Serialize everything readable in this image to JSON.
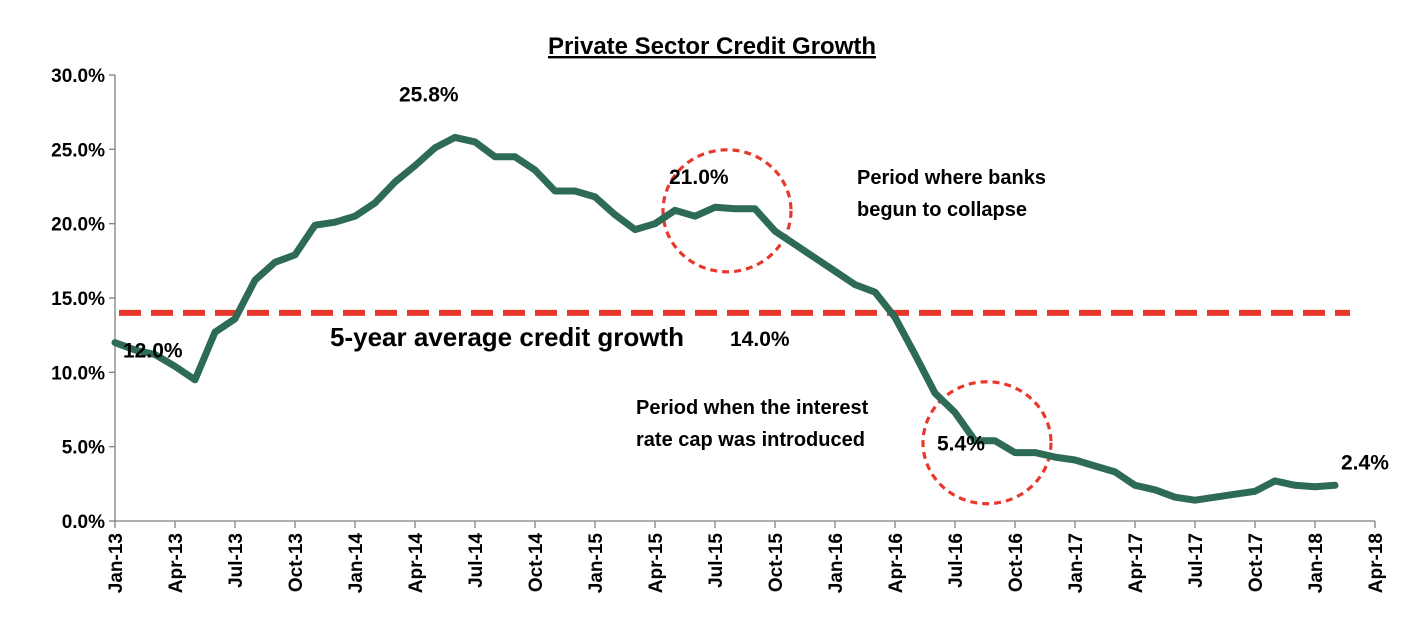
{
  "chart_data": {
    "type": "line",
    "title": "Private Sector Credit Growth",
    "xlabel": "",
    "ylabel": "",
    "ylim": [
      0,
      30
    ],
    "y_ticks": [
      "0.0%",
      "5.0%",
      "10.0%",
      "15.0%",
      "20.0%",
      "25.0%",
      "30.0%"
    ],
    "x_ticks": [
      "Jan-13",
      "Apr-13",
      "Jul-13",
      "Oct-13",
      "Jan-14",
      "Apr-14",
      "Jul-14",
      "Oct-14",
      "Jan-15",
      "Apr-15",
      "Jul-15",
      "Oct-15",
      "Jan-16",
      "Apr-16",
      "Jul-16",
      "Oct-16",
      "Jan-17",
      "Apr-17",
      "Jul-17",
      "Oct-17",
      "Jan-18",
      "Apr-18"
    ],
    "x_range": [
      "2013-01",
      "2018-04"
    ],
    "series": [
      {
        "color": "#2e6b55",
        "x": [
          "2013-01",
          "2013-02",
          "2013-03",
          "2013-04",
          "2013-05",
          "2013-06",
          "2013-07",
          "2013-08",
          "2013-09",
          "2013-10",
          "2013-11",
          "2013-12",
          "2014-01",
          "2014-02",
          "2014-03",
          "2014-04",
          "2014-05",
          "2014-06",
          "2014-07",
          "2014-08",
          "2014-09",
          "2014-10",
          "2014-11",
          "2014-12",
          "2015-01",
          "2015-02",
          "2015-03",
          "2015-04",
          "2015-05",
          "2015-06",
          "2015-07",
          "2015-08",
          "2015-09",
          "2015-10",
          "2015-11",
          "2015-12",
          "2016-01",
          "2016-02",
          "2016-03",
          "2016-04",
          "2016-05",
          "2016-06",
          "2016-07",
          "2016-08",
          "2016-09",
          "2016-10",
          "2016-11",
          "2016-12",
          "2017-01",
          "2017-02",
          "2017-03",
          "2017-04",
          "2017-05",
          "2017-06",
          "2017-07",
          "2017-08",
          "2017-09",
          "2017-10",
          "2017-11",
          "2017-12",
          "2018-01",
          "2018-02"
        ],
        "values": [
          12.0,
          11.5,
          11.2,
          10.4,
          9.5,
          12.7,
          13.6,
          16.2,
          17.4,
          17.9,
          19.9,
          20.1,
          20.5,
          21.4,
          22.8,
          23.9,
          25.1,
          25.8,
          25.5,
          24.5,
          24.5,
          23.6,
          22.2,
          22.2,
          21.8,
          20.6,
          19.6,
          20.0,
          20.9,
          20.5,
          21.1,
          21.0,
          21.0,
          19.5,
          18.6,
          17.7,
          16.8,
          15.9,
          15.4,
          13.7,
          11.2,
          8.6,
          7.3,
          5.4,
          5.4,
          4.6,
          4.6,
          4.3,
          4.1,
          3.7,
          3.3,
          2.4,
          2.1,
          1.6,
          1.4,
          1.6,
          1.8,
          2.0,
          2.7,
          2.4,
          2.3,
          2.4
        ]
      }
    ],
    "average_line": {
      "value": 14.0,
      "label": "5-year average credit growth",
      "value_label": "14.0%",
      "color": "#e8382c"
    },
    "data_labels": [
      {
        "x": "2013-01",
        "y": 12.0,
        "text": "12.0%"
      },
      {
        "x": "2014-06",
        "y": 25.8,
        "text": "25.8%"
      },
      {
        "x": "2015-08",
        "y": 21.0,
        "text": "21.0%"
      },
      {
        "x": "2016-09",
        "y": 5.4,
        "text": "5.4%"
      },
      {
        "x": "2018-02",
        "y": 2.4,
        "text": "2.4%"
      }
    ],
    "highlight_circles": [
      {
        "x": "2015-08",
        "y": 21.0,
        "color": "#e8382c"
      },
      {
        "x": "2016-09",
        "y": 5.4,
        "color": "#e8382c"
      }
    ],
    "annotations": [
      {
        "lines": [
          "Period where banks",
          "begun to collapse"
        ]
      },
      {
        "lines": [
          "Period when the interest",
          "rate cap was introduced"
        ]
      }
    ],
    "grid": false,
    "legend": "none"
  }
}
